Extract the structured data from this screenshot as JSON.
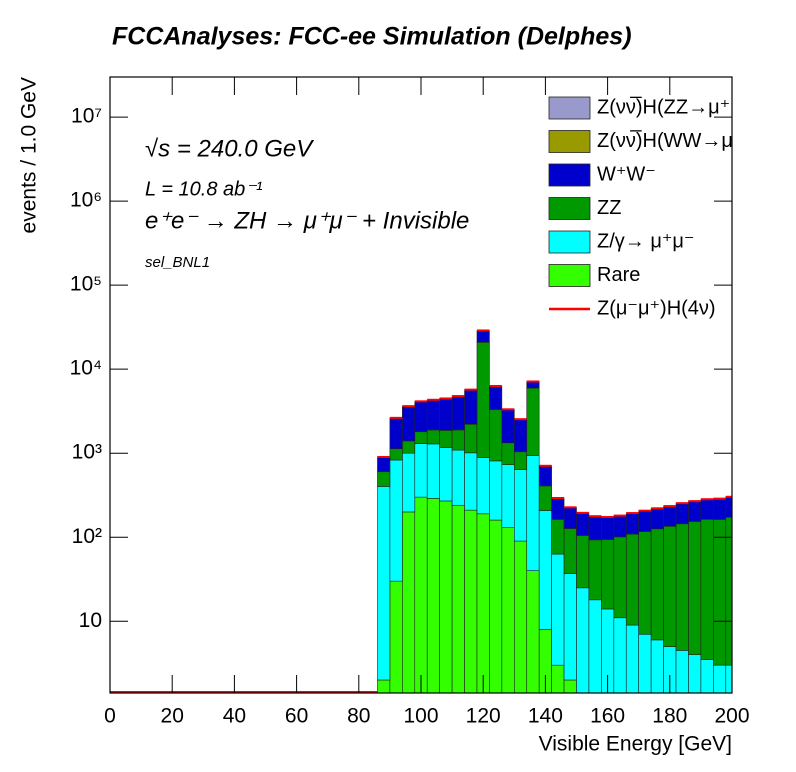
{
  "chart_data": {
    "type": "histogram",
    "title": "FCCAnalyses: FCC-ee Simulation (Delphes)",
    "xlabel": "Visible Energy [GeV]",
    "ylabel": "events / 1.0 GeV",
    "annotations": [
      "√s = 240.0 GeV",
      "L = 10.8 ab⁻¹",
      "e⁺e⁻ → ZH → μ⁺μ⁻ + Invisible",
      "sel_BNL1"
    ],
    "log_y": true,
    "stacked": true,
    "bins": [
      86,
      90,
      94,
      98,
      102,
      106,
      110,
      114,
      118,
      122,
      126,
      130,
      134,
      138,
      142,
      146,
      150,
      154,
      158,
      162,
      166,
      170,
      174,
      178,
      182,
      186,
      190,
      194,
      198,
      200
    ],
    "xlim": [
      0,
      200
    ],
    "xticks": [
      0,
      20,
      40,
      60,
      80,
      100,
      120,
      140,
      160,
      180,
      200
    ],
    "ylim": [
      1.4,
      30000000
    ],
    "yticks": [
      10,
      {
        "value": 100,
        "label": "10²"
      },
      {
        "value": 1000,
        "label": "10³"
      },
      {
        "value": 10000,
        "label": "10⁴"
      },
      {
        "value": 100000,
        "label": "10⁵"
      },
      {
        "value": 1000000,
        "label": "10⁶"
      },
      {
        "value": 10000000,
        "label": "10⁷"
      }
    ],
    "series": [
      {
        "name": "Z(νν̅)H(ZZ→μ⁺μ⁻νν̅)",
        "color": "#9999cc",
        "values": [
          0,
          0,
          0,
          1,
          1,
          0,
          0,
          0,
          0,
          0,
          0,
          0,
          0,
          0,
          0,
          0,
          0,
          0,
          0,
          0,
          0,
          0,
          0,
          0,
          0,
          0,
          0,
          0,
          0
        ]
      },
      {
        "name": "Z(νν̅)H(WW→μ⁺νμ⁻ν̅)",
        "color": "#999900",
        "values": [
          0,
          0,
          2,
          2,
          2,
          2,
          0,
          0,
          0,
          0,
          0,
          0,
          0,
          0,
          0,
          0,
          0,
          0,
          0,
          0,
          0,
          0,
          0,
          0,
          0,
          0,
          0,
          0,
          0
        ]
      },
      {
        "name": "W⁺W⁻",
        "color": "#0000cc",
        "values": [
          300,
          1500,
          2200,
          2300,
          2400,
          2600,
          2900,
          3500,
          8000,
          3000,
          2000,
          1500,
          1200,
          300,
          130,
          100,
          90,
          85,
          80,
          80,
          85,
          90,
          95,
          100,
          110,
          115,
          120,
          125,
          130
        ]
      },
      {
        "name": "ZZ",
        "color": "#009900",
        "values": [
          200,
          300,
          400,
          500,
          600,
          700,
          800,
          1200,
          20000,
          2500,
          600,
          400,
          5000,
          200,
          100,
          90,
          80,
          75,
          80,
          90,
          100,
          110,
          120,
          130,
          140,
          150,
          160,
          160,
          170
        ]
      },
      {
        "name": "Z/γ→ μ⁺μ⁻",
        "color": "#00ffff",
        "values": [
          400,
          800,
          800,
          1000,
          1000,
          900,
          850,
          800,
          700,
          650,
          600,
          550,
          900,
          200,
          60,
          35,
          25,
          18,
          14,
          11,
          9,
          7,
          6,
          5,
          4.5,
          4,
          3.5,
          3,
          3
        ]
      },
      {
        "name": "Rare",
        "color": "#33ff00",
        "values": [
          2,
          30,
          200,
          300,
          290,
          270,
          240,
          210,
          190,
          160,
          130,
          90,
          40,
          8,
          3,
          2,
          0,
          0,
          0,
          0,
          0,
          0,
          0,
          0,
          0,
          0,
          0,
          0,
          0
        ]
      },
      {
        "name": "Z(μ⁻μ⁺)H(4ν)",
        "color": "#ff0000",
        "line": true,
        "values": [
          0,
          5,
          30,
          40,
          30,
          10,
          0,
          0,
          0,
          0,
          0,
          0,
          0,
          0,
          0,
          0,
          0,
          0,
          0,
          0,
          0,
          0,
          0,
          0,
          0,
          0,
          0,
          0,
          0
        ]
      }
    ]
  }
}
